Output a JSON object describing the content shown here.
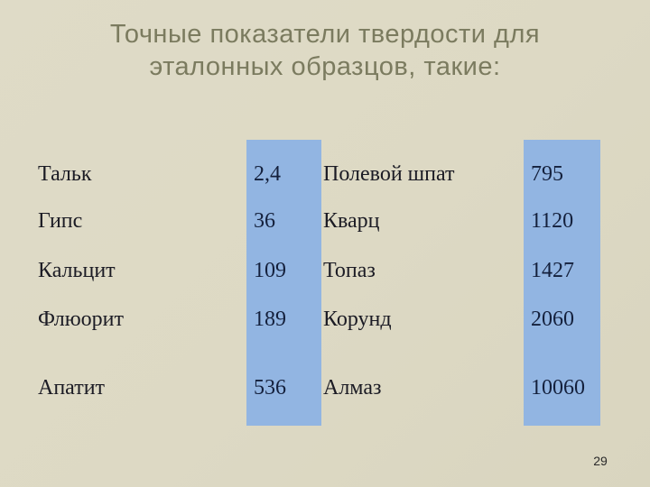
{
  "slide": {
    "title_line1": "Точные показатели твердости для",
    "title_line2": "эталонных образцов, такие:",
    "page_number": "29"
  },
  "table": {
    "rows": [
      {
        "name1": "Тальк",
        "value1": "2,4",
        "name2": "Полевой шпат",
        "value2": "795"
      },
      {
        "name1": "Гипс",
        "value1": "36",
        "name2": "Кварц",
        "value2": "1120"
      },
      {
        "name1": "Кальцит",
        "value1": "109",
        "name2": "Топаз",
        "value2": "1427"
      },
      {
        "name1": "Флюорит",
        "value1": "189",
        "name2": "Корунд",
        "value2": "2060"
      },
      {
        "name1": "Апатит",
        "value1": "536",
        "name2": "Алмаз",
        "value2": "10060"
      }
    ]
  },
  "colors": {
    "background": "#ddd9c4",
    "title_text": "#7b7b5f",
    "highlight_column": "#92b5e2",
    "name_text": "#1b1b24",
    "value_text": "#14203c"
  }
}
